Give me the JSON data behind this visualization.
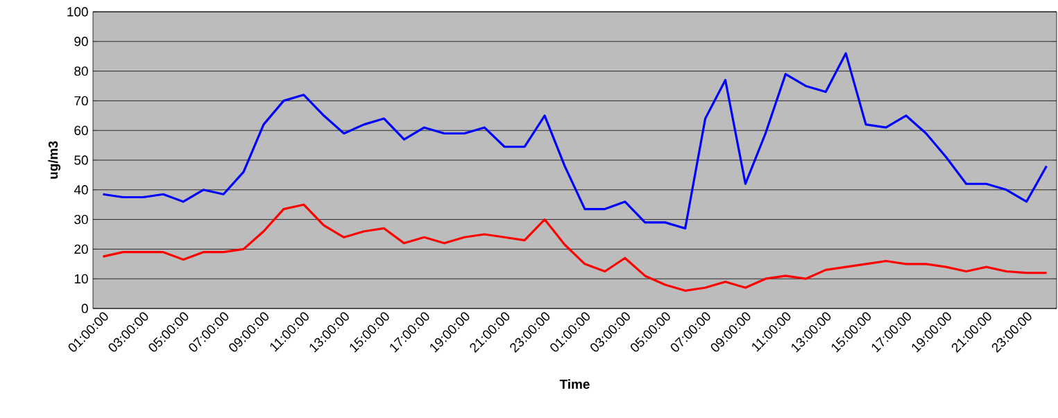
{
  "chart_data": {
    "type": "line",
    "xlabel": "Time",
    "ylabel": "ug/m3",
    "categories": [
      "01:00:00",
      null,
      "03:00:00",
      null,
      "05:00:00",
      null,
      "07:00:00",
      null,
      "09:00:00",
      null,
      "11:00:00",
      null,
      "13:00:00",
      null,
      "15:00:00",
      null,
      "17:00:00",
      null,
      "19:00:00",
      null,
      "21:00:00",
      null,
      "23:00:00",
      null,
      "01:00:00",
      null,
      "03:00:00",
      null,
      "05:00:00",
      null,
      "07:00:00",
      null,
      "09:00:00",
      null,
      "11:00:00",
      null,
      "13:00:00",
      null,
      "15:00:00",
      null,
      "17:00:00",
      null,
      "19:00:00",
      null,
      "21:00:00",
      null,
      "23:00:00",
      null
    ],
    "series": [
      {
        "color": "#0000ff",
        "values": [
          38.5,
          37.5,
          37.5,
          38.5,
          36,
          40,
          38.5,
          46,
          62,
          70,
          72,
          65,
          59,
          62,
          64,
          57,
          61,
          59,
          59,
          61,
          54.5,
          54.5,
          65,
          48,
          33.5,
          33.5,
          36,
          29,
          29,
          27,
          64,
          77,
          42,
          59,
          79,
          75,
          73,
          86,
          62,
          61,
          65,
          59,
          51,
          42,
          42,
          40,
          36,
          48
        ]
      },
      {
        "color": "#ff0000",
        "values": [
          17.5,
          19,
          19,
          19,
          16.5,
          19,
          19,
          20,
          26,
          33.5,
          35,
          28,
          24,
          26,
          27,
          22,
          24,
          22,
          24,
          25,
          24,
          23,
          30,
          21.5,
          15,
          12.5,
          17,
          11,
          8,
          6,
          7,
          9,
          7,
          10,
          11,
          10,
          13,
          14,
          15,
          16,
          15,
          15,
          14,
          12.5,
          14,
          12.5,
          12,
          12
        ]
      }
    ],
    "ylim": [
      0,
      100
    ],
    "yticks": [
      0,
      10,
      20,
      30,
      40,
      50,
      60,
      70,
      80,
      90,
      100
    ],
    "grid": "y",
    "marker": "none",
    "line_style": "solid"
  }
}
